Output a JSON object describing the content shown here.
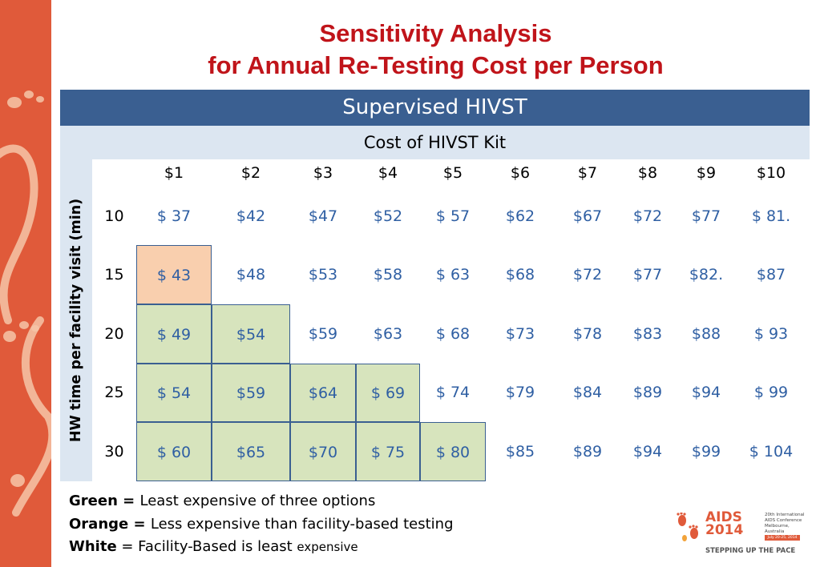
{
  "title": {
    "line1": "Sensitivity Analysis",
    "line2": "for Annual Re-Testing Cost per Person"
  },
  "table": {
    "header": "Supervised HIVST",
    "subheader": "Cost of HIVST Kit",
    "row_axis_label": "HW time per facility visit (min)",
    "columns": [
      "$1",
      "$2",
      "$3",
      "$4",
      "$5",
      "$6",
      "$7",
      "$8",
      "$9",
      "$10"
    ],
    "rows": [
      {
        "label": "10",
        "values": [
          "$ 37",
          "$42",
          "$47",
          "$52",
          "$ 57",
          "$62",
          "$67",
          "$72",
          "$77",
          "$ 81."
        ],
        "highlight": [
          "",
          "",
          "",
          "",
          "",
          "",
          "",
          "",
          "",
          ""
        ]
      },
      {
        "label": "15",
        "values": [
          "$ 43",
          "$48",
          "$53",
          "$58",
          "$ 63",
          "$68",
          "$72",
          "$77",
          "$82.",
          "$87"
        ],
        "highlight": [
          "orange",
          "",
          "",
          "",
          "",
          "",
          "",
          "",
          "",
          ""
        ]
      },
      {
        "label": "20",
        "values": [
          "$ 49",
          "$54",
          "$59",
          "$63",
          "$ 68",
          "$73",
          "$78",
          "$83",
          "$88",
          "$ 93"
        ],
        "highlight": [
          "green",
          "green",
          "",
          "",
          "",
          "",
          "",
          "",
          "",
          ""
        ]
      },
      {
        "label": "25",
        "values": [
          "$  54",
          "$59",
          "$64",
          "$ 69",
          "$ 74",
          "$79",
          "$84",
          "$89",
          "$94",
          "$ 99"
        ],
        "highlight": [
          "green",
          "green",
          "green",
          "green",
          "",
          "",
          "",
          "",
          "",
          ""
        ]
      },
      {
        "label": "30",
        "values": [
          "$ 60",
          "$65",
          "$70",
          "$ 75",
          "$ 80",
          "$85",
          "$89",
          "$94",
          "$99",
          "$ 104"
        ],
        "highlight": [
          "green",
          "green",
          "green",
          "green",
          "green",
          "",
          "",
          "",
          "",
          ""
        ]
      }
    ]
  },
  "legend": {
    "green_key": "Green = ",
    "green_text": "Least expensive of three options",
    "orange_key": "Orange = ",
    "orange_text": "Less expensive than facility-based testing",
    "white_key": "White",
    "white_text": " = Facility-Based is least ",
    "white_text_small": "expensive"
  },
  "logo": {
    "line1": "AIDS",
    "line2": "2014",
    "conference_line1": "20th International",
    "conference_line2": "AIDS Conference",
    "conference_line3": "Melbourne, Australia",
    "dates": "July 20-25, 2014",
    "tagline": "STEPPING UP THE PACE"
  },
  "colors": {
    "accent_orange": "#e05a3a",
    "title_red": "#c0141a",
    "header_blue": "#3a5f91",
    "subheader_lightblue": "#dce6f1",
    "value_blue": "#2f5fa3",
    "green_fill": "#d7e4bd",
    "orange_fill": "#f9cfae"
  }
}
